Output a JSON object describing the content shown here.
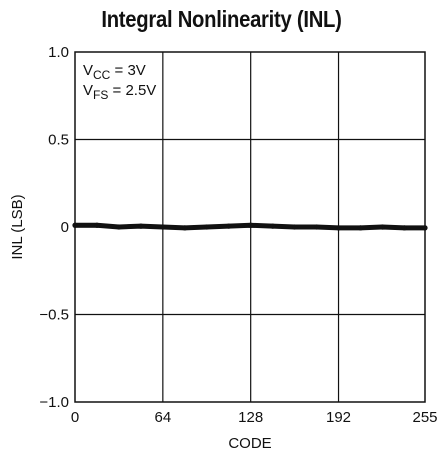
{
  "chart_data": {
    "type": "line",
    "title": "Integral Nonlinearity (INL)",
    "xlabel": "CODE",
    "ylabel": "INL (LSB)",
    "xlim": [
      0,
      255
    ],
    "ylim": [
      -1.0,
      1.0
    ],
    "x_ticks": [
      0,
      64,
      128,
      192,
      255
    ],
    "x_tick_labels": [
      "0",
      "64",
      "128",
      "192",
      "255"
    ],
    "y_ticks": [
      1.0,
      0.5,
      0,
      -0.5,
      -1.0
    ],
    "y_tick_labels": [
      "1.0",
      "0.5",
      "0",
      "−0.5",
      "−1.0"
    ],
    "grid": true,
    "annotations": {
      "vcc": {
        "base": "V",
        "sub": "CC",
        "text": " = 3V"
      },
      "vfs": {
        "base": "V",
        "sub": "FS",
        "text": " = 2.5V"
      }
    },
    "series": [
      {
        "color": "#111111",
        "x": [
          0,
          16,
          32,
          48,
          64,
          80,
          96,
          112,
          128,
          144,
          160,
          176,
          192,
          208,
          224,
          240,
          255
        ],
        "values": [
          0.01,
          0.01,
          0.0,
          0.005,
          0.0,
          -0.005,
          0.0,
          0.005,
          0.01,
          0.005,
          0.0,
          0.0,
          -0.005,
          -0.005,
          0.0,
          -0.005,
          -0.005
        ]
      }
    ]
  }
}
